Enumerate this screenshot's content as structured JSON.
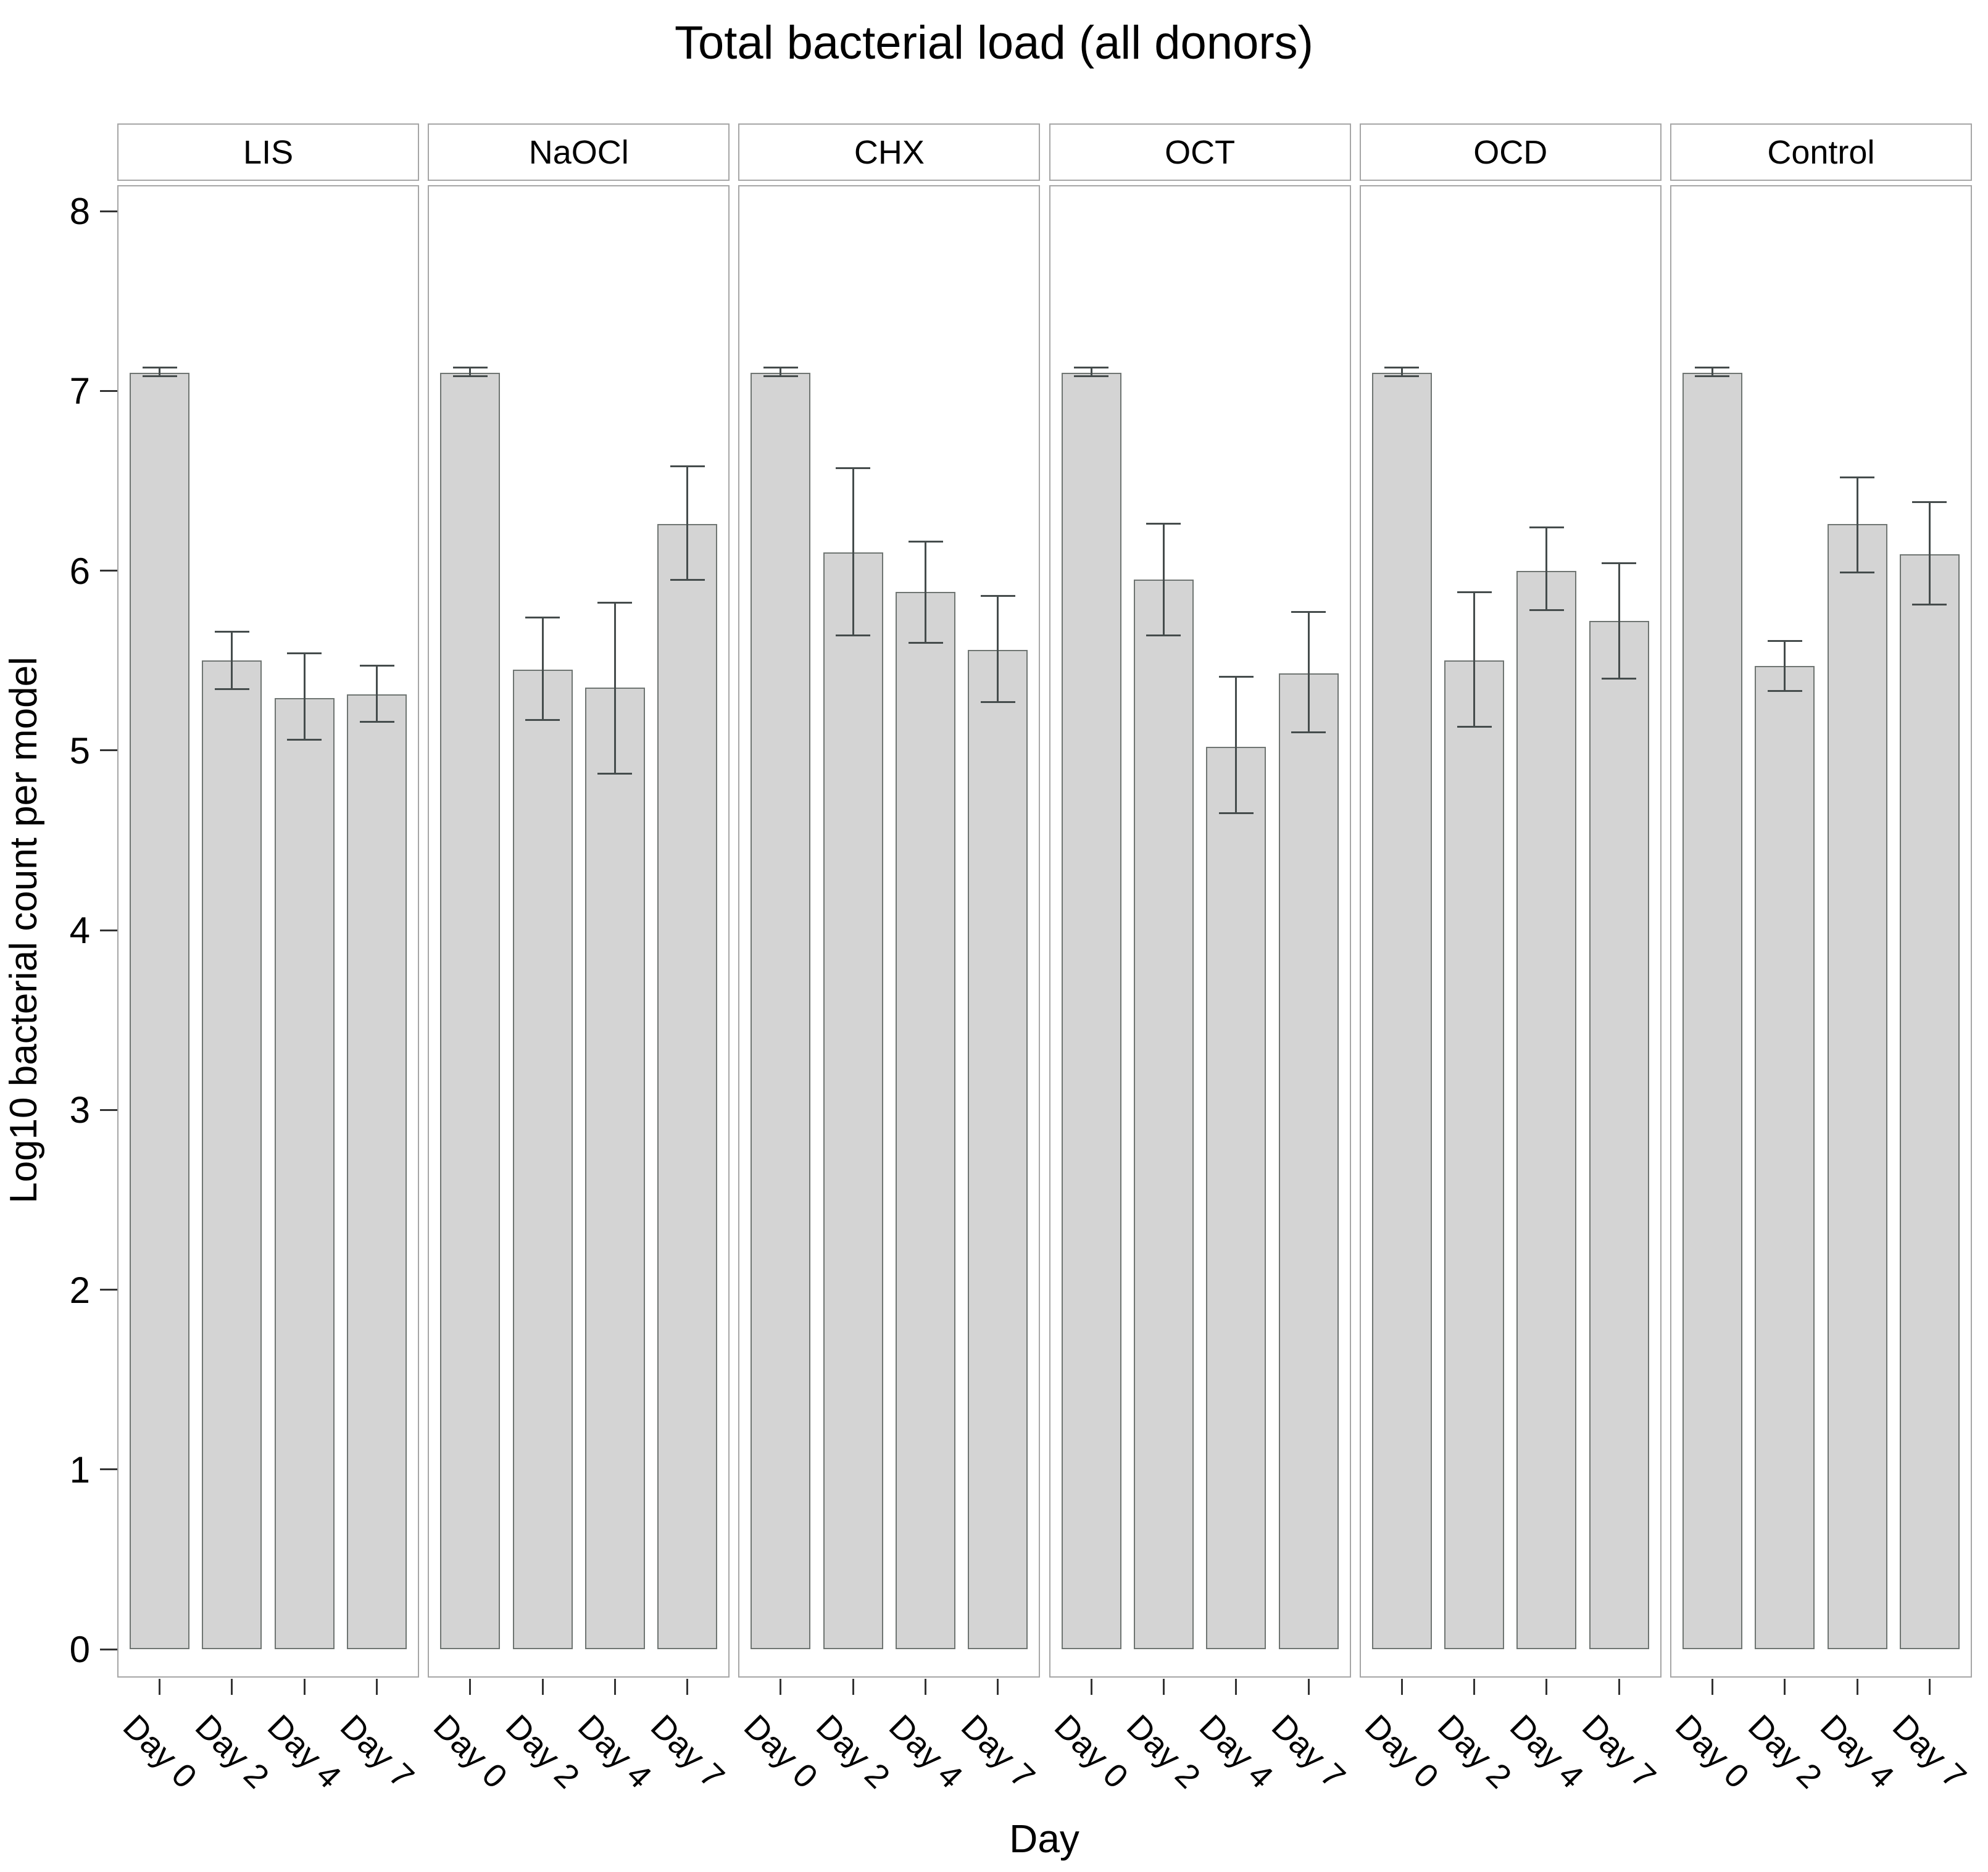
{
  "title": "Total bacterial load (all donors)",
  "y_axis": {
    "label": "Log10 bacterial count per model",
    "tick_labels": [
      "0",
      "1",
      "2",
      "3",
      "4",
      "5",
      "6",
      "7",
      "8"
    ]
  },
  "x_axis": {
    "label": "Day",
    "tick_labels": [
      "Day 0",
      "Day 2",
      "Day 4",
      "Day 7"
    ]
  },
  "chart_data": {
    "type": "bar",
    "faceted": true,
    "title": "Total bacterial load (all donors)",
    "xlabel": "Day",
    "ylabel": "Log10 bacterial count per model",
    "ylim": [
      0,
      8.15
    ],
    "grid": false,
    "legend": "none",
    "categories": [
      "Day 0",
      "Day 2",
      "Day 4",
      "Day 7"
    ],
    "error_bars": "mean ± whisker caps, values in log10 units",
    "facets": [
      {
        "name": "LIS",
        "values": [
          7.1,
          5.5,
          5.29,
          5.31
        ],
        "err_low": [
          7.08,
          5.34,
          5.06,
          5.16
        ],
        "err_high": [
          7.13,
          5.66,
          5.54,
          5.47
        ]
      },
      {
        "name": "NaOCl",
        "values": [
          7.1,
          5.45,
          5.35,
          6.26
        ],
        "err_low": [
          7.08,
          5.17,
          4.87,
          5.95
        ],
        "err_high": [
          7.13,
          5.74,
          5.82,
          6.58
        ]
      },
      {
        "name": "CHX",
        "values": [
          7.1,
          6.1,
          5.88,
          5.56
        ],
        "err_low": [
          7.08,
          5.64,
          5.6,
          5.27
        ],
        "err_high": [
          7.13,
          6.57,
          6.16,
          5.86
        ]
      },
      {
        "name": "OCT",
        "values": [
          7.1,
          5.95,
          5.02,
          5.43
        ],
        "err_low": [
          7.08,
          5.64,
          4.65,
          5.1
        ],
        "err_high": [
          7.13,
          6.26,
          5.41,
          5.77
        ]
      },
      {
        "name": "OCD",
        "values": [
          7.1,
          5.5,
          6.0,
          5.72
        ],
        "err_low": [
          7.08,
          5.13,
          5.78,
          5.4
        ],
        "err_high": [
          7.13,
          5.88,
          6.24,
          6.04
        ]
      },
      {
        "name": "Control",
        "values": [
          7.1,
          5.47,
          6.26,
          6.09
        ],
        "err_low": [
          7.08,
          5.33,
          5.99,
          5.81
        ],
        "err_high": [
          7.13,
          5.61,
          6.52,
          6.38
        ]
      }
    ],
    "colors": {
      "bar_fill": "#d4d4d4",
      "bar_stroke": "#6f7572",
      "error_bar": "#454c4c",
      "panel_border": "#a6a6a6",
      "tick": "#333333",
      "text": "#000000"
    }
  }
}
